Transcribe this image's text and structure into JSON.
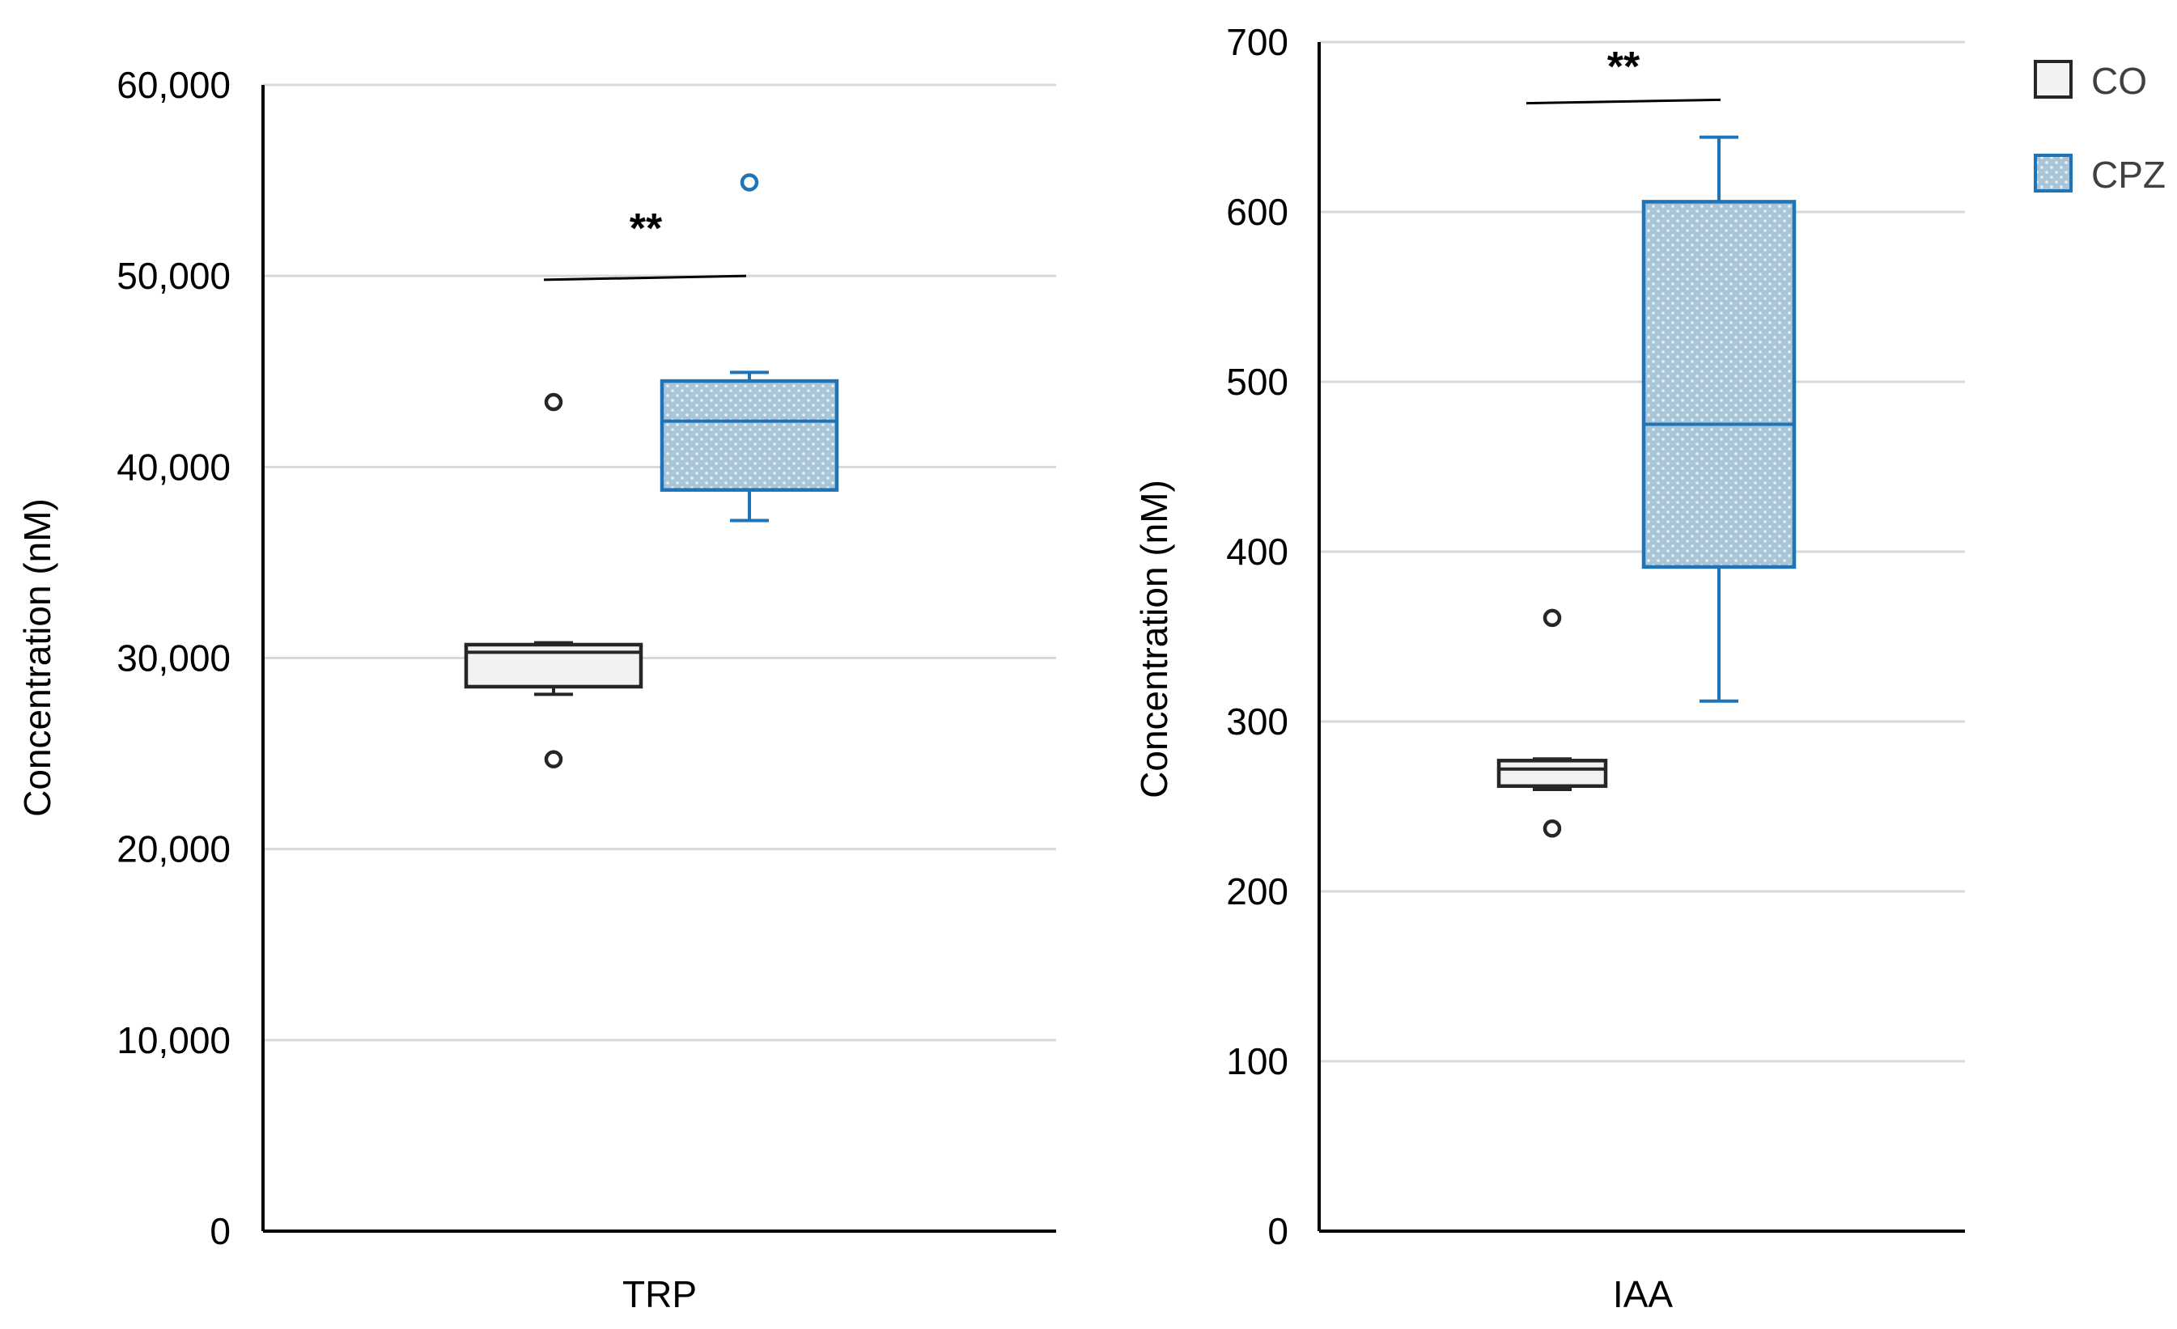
{
  "chart_data": [
    {
      "type": "boxplot",
      "title": "",
      "category": "TRP",
      "xlabel": "TRP",
      "ylabel": "Concentration (nM)",
      "ylim": [
        0,
        60000
      ],
      "yticks": [
        0,
        10000,
        20000,
        30000,
        40000,
        50000,
        60000
      ],
      "ytick_labels": [
        "0",
        "10,000",
        "20,000",
        "30,000",
        "40,000",
        "50,000",
        "60,000"
      ],
      "grid": true,
      "significance": "**",
      "significance_bar": [
        49800,
        50000
      ],
      "series": [
        {
          "name": "CO",
          "whisker_low": 28100,
          "q1": 28500,
          "median": 30300,
          "q3": 30700,
          "whisker_high": 30800,
          "outliers": [
            43400,
            24700
          ]
        },
        {
          "name": "CPZ",
          "whisker_low": 37200,
          "q1": 38800,
          "median": 42400,
          "q3": 44500,
          "whisker_high": 44950,
          "outliers": [
            54900
          ]
        }
      ]
    },
    {
      "type": "boxplot",
      "title": "",
      "category": "IAA",
      "xlabel": "IAA",
      "ylabel": "Concentration (nM)",
      "ylim": [
        0,
        700
      ],
      "yticks": [
        0,
        100,
        200,
        300,
        400,
        500,
        600,
        700
      ],
      "ytick_labels": [
        "0",
        "100",
        "200",
        "300",
        "400",
        "500",
        "600",
        "700"
      ],
      "grid": true,
      "significance": "**",
      "significance_bar": [
        664,
        666
      ],
      "series": [
        {
          "name": "CO",
          "whisker_low": 260,
          "q1": 262,
          "median": 272,
          "q3": 277,
          "whisker_high": 278,
          "outliers": [
            361,
            237
          ]
        },
        {
          "name": "CPZ",
          "whisker_low": 312,
          "q1": 391,
          "median": 475,
          "q3": 606,
          "whisker_high": 644,
          "outliers": []
        }
      ]
    }
  ],
  "legend": {
    "position": "top-right",
    "items": [
      {
        "name": "CO",
        "edge": "#262626",
        "fill": "#f2f2f2"
      },
      {
        "name": "CPZ",
        "edge": "#1f74b8",
        "fill": "#9cbcd0"
      }
    ]
  },
  "colors": {
    "co_edge": "#262626",
    "co_fill": "#f2f2f2",
    "cpz_edge": "#1f74b8",
    "cpz_fill": "#9cbcd0",
    "axis": "#000000",
    "grid": "#d9d9d9"
  }
}
